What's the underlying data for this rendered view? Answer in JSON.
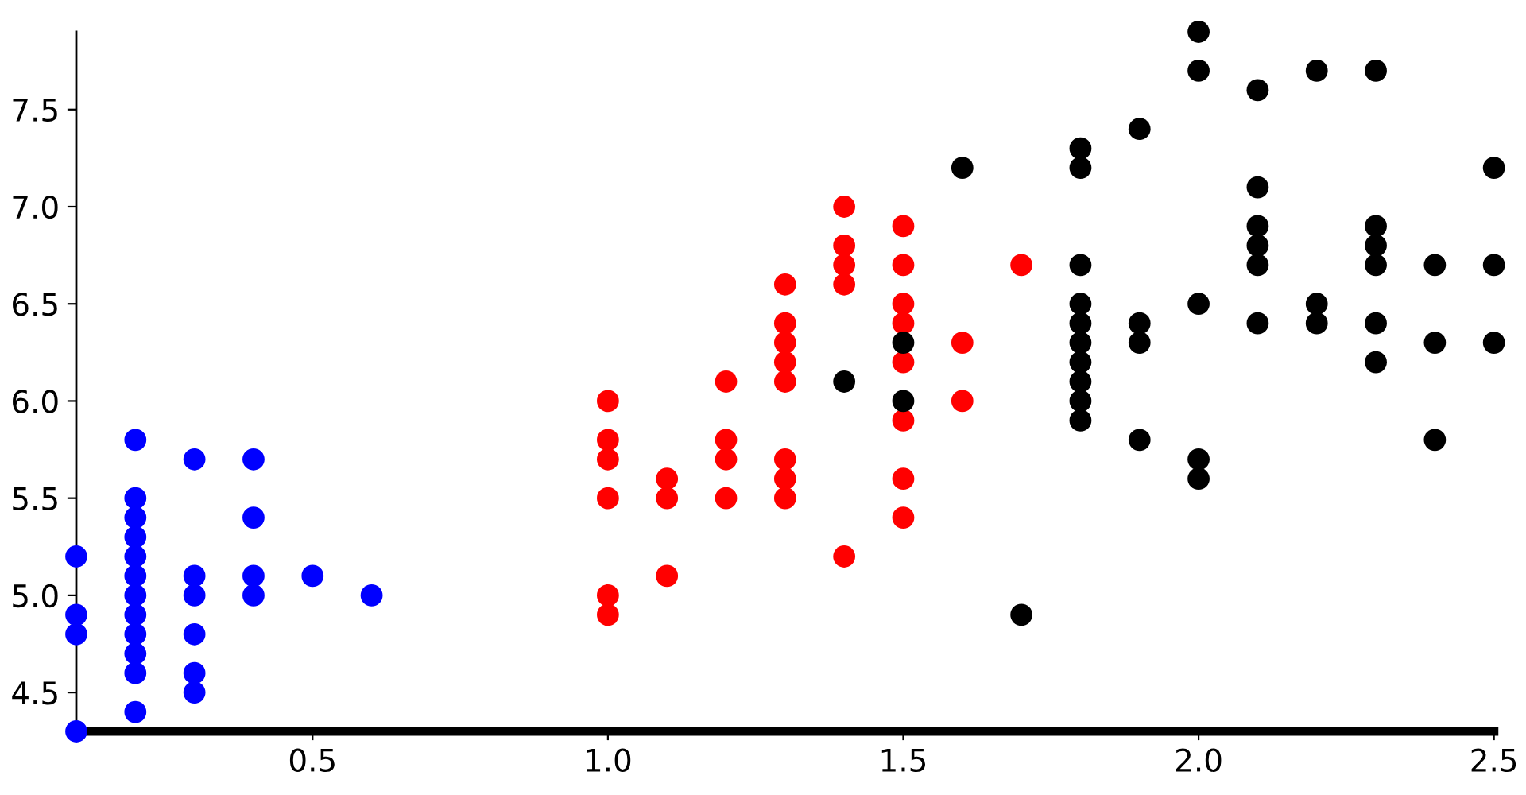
{
  "chart_data": {
    "type": "scatter",
    "series": [
      {
        "color": "#0000ff",
        "x": [
          0.1,
          0.1,
          0.1,
          0.1,
          0.2,
          0.2,
          0.2,
          0.2,
          0.2,
          0.2,
          0.2,
          0.2,
          0.2,
          0.2,
          0.2,
          0.2,
          0.3,
          0.3,
          0.3,
          0.3,
          0.3,
          0.3,
          0.4,
          0.4,
          0.4,
          0.4,
          0.5,
          0.6
        ],
        "values": [
          4.3,
          4.8,
          4.9,
          5.2,
          4.4,
          4.6,
          4.7,
          4.8,
          4.9,
          5.0,
          5.1,
          5.2,
          5.3,
          5.4,
          5.5,
          5.8,
          4.5,
          4.6,
          4.8,
          5.0,
          5.1,
          5.7,
          5.0,
          5.1,
          5.4,
          5.7,
          5.1,
          5.0
        ]
      },
      {
        "color": "#ff0000",
        "x": [
          1.0,
          1.0,
          1.0,
          1.0,
          1.0,
          1.0,
          1.1,
          1.1,
          1.1,
          1.2,
          1.2,
          1.2,
          1.2,
          1.3,
          1.3,
          1.3,
          1.3,
          1.3,
          1.3,
          1.3,
          1.3,
          1.4,
          1.4,
          1.4,
          1.4,
          1.4,
          1.5,
          1.5,
          1.5,
          1.5,
          1.5,
          1.5,
          1.5,
          1.5,
          1.6,
          1.6,
          1.7
        ],
        "values": [
          4.9,
          5.0,
          5.5,
          5.7,
          5.8,
          6.0,
          5.1,
          5.5,
          5.6,
          5.5,
          5.7,
          5.8,
          6.1,
          5.5,
          5.6,
          5.7,
          6.1,
          6.2,
          6.3,
          6.4,
          6.6,
          5.2,
          6.6,
          6.7,
          6.8,
          7.0,
          5.4,
          5.6,
          5.9,
          6.2,
          6.4,
          6.5,
          6.7,
          6.9,
          6.0,
          6.3,
          6.7
        ]
      },
      {
        "color": "#000000",
        "x": [
          1.4,
          1.5,
          1.5,
          1.6,
          1.7,
          1.8,
          1.8,
          1.8,
          1.8,
          1.8,
          1.8,
          1.8,
          1.8,
          1.8,
          1.8,
          1.9,
          1.9,
          1.9,
          1.9,
          2.0,
          2.0,
          2.0,
          2.0,
          2.0,
          2.1,
          2.1,
          2.1,
          2.1,
          2.1,
          2.1,
          2.2,
          2.2,
          2.2,
          2.3,
          2.3,
          2.3,
          2.3,
          2.3,
          2.3,
          2.4,
          2.4,
          2.4,
          2.5,
          2.5,
          2.5
        ],
        "values": [
          6.1,
          6.0,
          6.3,
          7.2,
          4.9,
          5.9,
          6.0,
          6.1,
          6.2,
          6.3,
          6.4,
          6.5,
          6.7,
          7.2,
          7.3,
          5.8,
          6.3,
          6.4,
          7.4,
          5.6,
          5.7,
          6.5,
          7.7,
          7.9,
          6.4,
          6.7,
          6.8,
          6.9,
          7.1,
          7.6,
          6.4,
          6.5,
          7.7,
          6.2,
          6.4,
          6.7,
          6.8,
          6.9,
          7.7,
          5.8,
          6.3,
          6.7,
          6.3,
          6.7,
          7.2
        ]
      }
    ],
    "xlim": [
      0.1,
      2.5
    ],
    "ylim": [
      4.3,
      7.9
    ],
    "xticks": [
      {
        "value": 0.5,
        "label": "0.5"
      },
      {
        "value": 1.0,
        "label": "1.0"
      },
      {
        "value": 1.5,
        "label": "1.5"
      },
      {
        "value": 2.0,
        "label": "2.0"
      },
      {
        "value": 2.5,
        "label": "2.5"
      }
    ],
    "yticks": [
      {
        "value": 4.5,
        "label": "4.5"
      },
      {
        "value": 5.0,
        "label": "5.0"
      },
      {
        "value": 5.5,
        "label": "5.5"
      },
      {
        "value": 6.0,
        "label": "6.0"
      },
      {
        "value": 6.5,
        "label": "6.5"
      },
      {
        "value": 7.0,
        "label": "7.0"
      },
      {
        "value": 7.5,
        "label": "7.5"
      }
    ],
    "grid": false,
    "legend": false,
    "marker": "circle"
  }
}
